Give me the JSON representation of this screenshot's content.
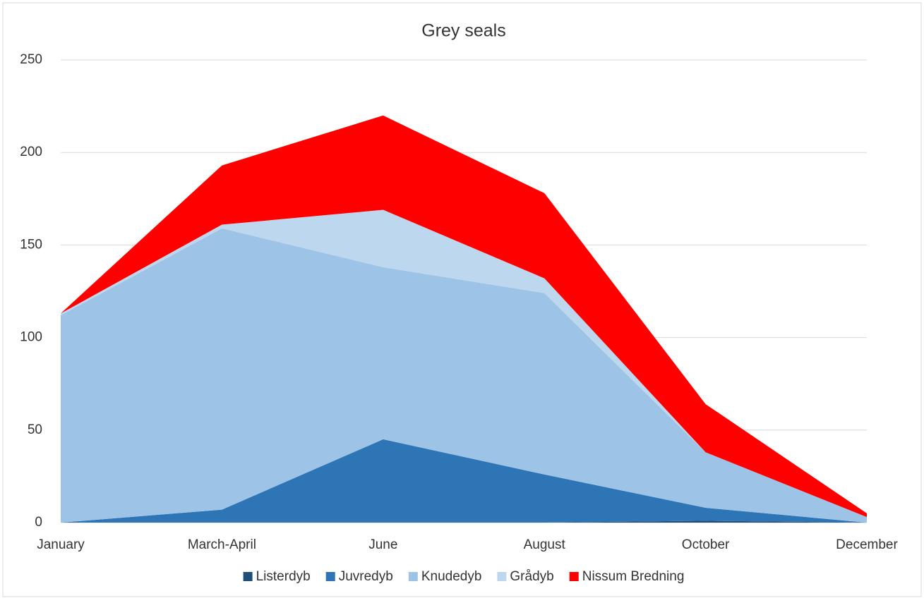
{
  "chart_data": {
    "type": "stacked_area",
    "title": "Grey seals",
    "categories": [
      "January",
      "March-April",
      "June",
      "August",
      "October",
      "December"
    ],
    "series": [
      {
        "name": "Listerdyb",
        "color": "#1f4e79",
        "values": [
          0,
          0,
          0,
          0,
          1,
          0
        ]
      },
      {
        "name": "Juvredyb",
        "color": "#2e75b6",
        "values": [
          0,
          7,
          45,
          26,
          7,
          0
        ]
      },
      {
        "name": "Knudedyb",
        "color": "#9dc3e6",
        "values": [
          112,
          152,
          93,
          98,
          30,
          3
        ]
      },
      {
        "name": "Grådyb",
        "color": "#bdd7ee",
        "values": [
          1,
          2,
          31,
          8,
          0,
          0
        ]
      },
      {
        "name": "Nissum Bredning",
        "color": "#ff0000",
        "values": [
          0,
          32,
          51,
          46,
          26,
          2
        ]
      }
    ],
    "ylim": [
      0,
      250
    ],
    "yticks": [
      0,
      50,
      100,
      150,
      200,
      250
    ],
    "grid": true,
    "legend": "bottom"
  }
}
